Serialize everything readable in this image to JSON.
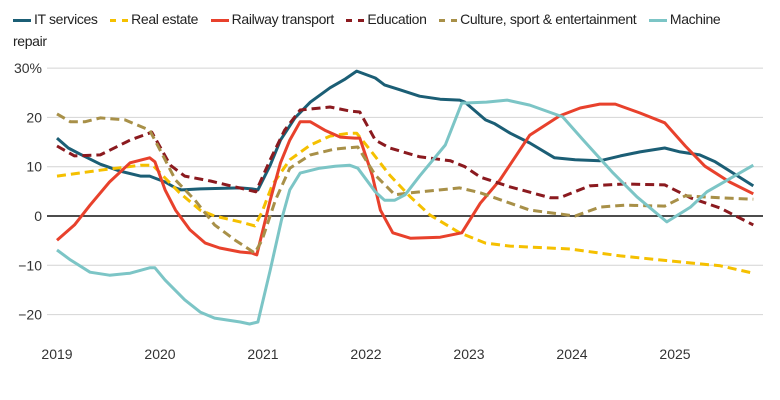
{
  "chart_data": {
    "type": "line",
    "title": "",
    "xlabel": "",
    "ylabel": "",
    "xlim": [
      2019,
      2025.9
    ],
    "ylim": [
      -25,
      30
    ],
    "grid": true,
    "legend_position": "top",
    "x_ticks": [
      "2019",
      "2020",
      "2021",
      "2022",
      "2023",
      "2024",
      "2025"
    ],
    "y_ticks": [
      {
        "value": 30,
        "label": "30%"
      },
      {
        "value": 20,
        "label": "20"
      },
      {
        "value": 10,
        "label": "10"
      },
      {
        "value": 0,
        "label": "0"
      },
      {
        "value": -10,
        "label": "−10"
      },
      {
        "value": -20,
        "label": "−20"
      }
    ],
    "series": [
      {
        "name": "IT services",
        "color": "#1b5e75",
        "dashed": false,
        "points": [
          [
            2019.0,
            15.8
          ],
          [
            2019.11,
            13.8
          ],
          [
            2019.22,
            12.6
          ],
          [
            2019.42,
            10.5
          ],
          [
            2019.61,
            9.1
          ],
          [
            2019.81,
            8.1
          ],
          [
            2019.9,
            8.1
          ],
          [
            2020.05,
            6.9
          ],
          [
            2020.15,
            5.7
          ],
          [
            2020.21,
            5.3
          ],
          [
            2020.39,
            5.5
          ],
          [
            2020.78,
            5.7
          ],
          [
            2020.89,
            5.5
          ],
          [
            2020.95,
            5.3
          ],
          [
            2021.07,
            10.3
          ],
          [
            2021.17,
            15.4
          ],
          [
            2021.31,
            19.9
          ],
          [
            2021.46,
            23.1
          ],
          [
            2021.65,
            26.0
          ],
          [
            2021.8,
            27.8
          ],
          [
            2021.91,
            29.4
          ],
          [
            2022.09,
            28.0
          ],
          [
            2022.18,
            26.6
          ],
          [
            2022.33,
            25.6
          ],
          [
            2022.52,
            24.3
          ],
          [
            2022.72,
            23.7
          ],
          [
            2022.91,
            23.5
          ],
          [
            2022.96,
            23.1
          ],
          [
            2023.16,
            19.5
          ],
          [
            2023.25,
            18.7
          ],
          [
            2023.4,
            16.8
          ],
          [
            2023.59,
            14.8
          ],
          [
            2023.83,
            11.8
          ],
          [
            2024.03,
            11.4
          ],
          [
            2024.27,
            11.2
          ],
          [
            2024.47,
            12.2
          ],
          [
            2024.66,
            13.0
          ],
          [
            2024.9,
            13.8
          ],
          [
            2025.05,
            13.0
          ],
          [
            2025.24,
            12.4
          ],
          [
            2025.39,
            11.0
          ],
          [
            2025.58,
            8.5
          ],
          [
            2025.76,
            6.1
          ]
        ]
      },
      {
        "name": "Real estate",
        "color": "#f5c000",
        "dashed": true,
        "points": [
          [
            2019.0,
            8.1
          ],
          [
            2019.42,
            9.3
          ],
          [
            2019.81,
            10.3
          ],
          [
            2019.93,
            10.3
          ],
          [
            2020.05,
            7.7
          ],
          [
            2020.19,
            4.7
          ],
          [
            2020.39,
            1.2
          ],
          [
            2020.53,
            0.0
          ],
          [
            2020.78,
            -1.2
          ],
          [
            2020.92,
            -2.0
          ],
          [
            2020.99,
            0.8
          ],
          [
            2021.09,
            6.3
          ],
          [
            2021.26,
            11.4
          ],
          [
            2021.46,
            14.4
          ],
          [
            2021.65,
            16.2
          ],
          [
            2021.84,
            16.8
          ],
          [
            2021.91,
            16.8
          ],
          [
            2022.04,
            13.4
          ],
          [
            2022.23,
            8.3
          ],
          [
            2022.43,
            3.9
          ],
          [
            2022.62,
            0.2
          ],
          [
            2022.91,
            -3.4
          ],
          [
            2023.16,
            -5.5
          ],
          [
            2023.4,
            -6.1
          ],
          [
            2023.98,
            -6.7
          ],
          [
            2024.47,
            -8.1
          ],
          [
            2024.95,
            -9.1
          ],
          [
            2025.44,
            -10.1
          ],
          [
            2025.76,
            -11.6
          ]
        ]
      },
      {
        "name": "Railway transport",
        "color": "#e8412c",
        "dashed": false,
        "points": [
          [
            2019.0,
            -4.9
          ],
          [
            2019.17,
            -1.8
          ],
          [
            2019.32,
            2.2
          ],
          [
            2019.51,
            6.9
          ],
          [
            2019.71,
            10.8
          ],
          [
            2019.9,
            11.8
          ],
          [
            2019.95,
            11.0
          ],
          [
            2020.05,
            5.3
          ],
          [
            2020.15,
            1.2
          ],
          [
            2020.29,
            -2.8
          ],
          [
            2020.44,
            -5.5
          ],
          [
            2020.58,
            -6.5
          ],
          [
            2020.78,
            -7.3
          ],
          [
            2020.89,
            -7.5
          ],
          [
            2020.94,
            -7.9
          ],
          [
            2021.07,
            3.2
          ],
          [
            2021.17,
            10.8
          ],
          [
            2021.26,
            15.4
          ],
          [
            2021.36,
            19.1
          ],
          [
            2021.46,
            19.1
          ],
          [
            2021.6,
            17.4
          ],
          [
            2021.75,
            16.0
          ],
          [
            2021.89,
            15.8
          ],
          [
            2021.94,
            15.8
          ],
          [
            2022.06,
            8.3
          ],
          [
            2022.14,
            1.2
          ],
          [
            2022.26,
            -3.4
          ],
          [
            2022.43,
            -4.5
          ],
          [
            2022.72,
            -4.3
          ],
          [
            2022.93,
            -3.4
          ],
          [
            2023.11,
            2.6
          ],
          [
            2023.3,
            7.3
          ],
          [
            2023.59,
            16.4
          ],
          [
            2023.88,
            20.3
          ],
          [
            2024.08,
            21.9
          ],
          [
            2024.27,
            22.7
          ],
          [
            2024.42,
            22.7
          ],
          [
            2024.66,
            20.9
          ],
          [
            2024.9,
            18.9
          ],
          [
            2025.1,
            14.2
          ],
          [
            2025.29,
            10.1
          ],
          [
            2025.53,
            6.9
          ],
          [
            2025.76,
            4.5
          ]
        ]
      },
      {
        "name": "Education",
        "color": "#8b1a1f",
        "dashed": true,
        "points": [
          [
            2019.0,
            14.2
          ],
          [
            2019.17,
            12.2
          ],
          [
            2019.42,
            12.4
          ],
          [
            2019.71,
            15.4
          ],
          [
            2019.92,
            17.0
          ],
          [
            2020.1,
            10.3
          ],
          [
            2020.24,
            8.1
          ],
          [
            2020.49,
            7.1
          ],
          [
            2020.73,
            5.9
          ],
          [
            2020.93,
            4.9
          ],
          [
            2021.07,
            11.4
          ],
          [
            2021.21,
            17.4
          ],
          [
            2021.36,
            21.5
          ],
          [
            2021.65,
            22.1
          ],
          [
            2021.84,
            21.3
          ],
          [
            2021.94,
            21.1
          ],
          [
            2022.09,
            15.4
          ],
          [
            2022.23,
            13.8
          ],
          [
            2022.52,
            12.0
          ],
          [
            2022.82,
            11.2
          ],
          [
            2022.96,
            10.0
          ],
          [
            2023.11,
            7.9
          ],
          [
            2023.4,
            5.9
          ],
          [
            2023.79,
            3.7
          ],
          [
            2023.88,
            3.7
          ],
          [
            2024.17,
            6.1
          ],
          [
            2024.51,
            6.5
          ],
          [
            2024.9,
            6.3
          ],
          [
            2025.15,
            3.7
          ],
          [
            2025.44,
            1.6
          ],
          [
            2025.76,
            -1.8
          ]
        ]
      },
      {
        "name": "Culture, sport & entertainment",
        "color": "#a89048",
        "dashed": true,
        "points": [
          [
            2019.0,
            20.7
          ],
          [
            2019.13,
            19.1
          ],
          [
            2019.27,
            19.1
          ],
          [
            2019.42,
            19.9
          ],
          [
            2019.66,
            19.5
          ],
          [
            2019.9,
            17.4
          ],
          [
            2020.0,
            13.4
          ],
          [
            2020.15,
            7.3
          ],
          [
            2020.34,
            3.2
          ],
          [
            2020.53,
            -1.8
          ],
          [
            2020.73,
            -4.9
          ],
          [
            2020.92,
            -7.5
          ],
          [
            2020.99,
            -4.9
          ],
          [
            2021.12,
            3.2
          ],
          [
            2021.26,
            9.7
          ],
          [
            2021.46,
            12.4
          ],
          [
            2021.7,
            13.6
          ],
          [
            2021.92,
            14.0
          ],
          [
            2022.09,
            8.3
          ],
          [
            2022.28,
            4.3
          ],
          [
            2022.43,
            4.7
          ],
          [
            2022.72,
            5.3
          ],
          [
            2022.91,
            5.7
          ],
          [
            2023.11,
            4.7
          ],
          [
            2023.4,
            2.6
          ],
          [
            2023.59,
            1.2
          ],
          [
            2024.03,
            0.0
          ],
          [
            2024.27,
            1.8
          ],
          [
            2024.51,
            2.2
          ],
          [
            2024.9,
            2.0
          ],
          [
            2025.1,
            4.1
          ],
          [
            2025.44,
            3.7
          ],
          [
            2025.76,
            3.4
          ]
        ]
      },
      {
        "name": "Machine repair",
        "color": "#7cc5c6",
        "dashed": false,
        "points": [
          [
            2019.0,
            -6.9
          ],
          [
            2019.13,
            -8.9
          ],
          [
            2019.32,
            -11.4
          ],
          [
            2019.51,
            -12.0
          ],
          [
            2019.71,
            -11.6
          ],
          [
            2019.9,
            -10.5
          ],
          [
            2019.95,
            -10.5
          ],
          [
            2020.05,
            -13.0
          ],
          [
            2020.24,
            -17.0
          ],
          [
            2020.39,
            -19.5
          ],
          [
            2020.53,
            -20.7
          ],
          [
            2020.78,
            -21.5
          ],
          [
            2020.87,
            -21.9
          ],
          [
            2020.95,
            -21.5
          ],
          [
            2021.07,
            -11.0
          ],
          [
            2021.18,
            -0.8
          ],
          [
            2021.26,
            5.3
          ],
          [
            2021.36,
            8.7
          ],
          [
            2021.55,
            9.7
          ],
          [
            2021.7,
            10.1
          ],
          [
            2021.84,
            10.3
          ],
          [
            2021.92,
            9.7
          ],
          [
            2022.09,
            4.9
          ],
          [
            2022.18,
            3.2
          ],
          [
            2022.28,
            3.2
          ],
          [
            2022.38,
            4.3
          ],
          [
            2022.52,
            8.1
          ],
          [
            2022.77,
            14.4
          ],
          [
            2022.93,
            22.9
          ],
          [
            2023.17,
            23.1
          ],
          [
            2023.37,
            23.5
          ],
          [
            2023.59,
            22.5
          ],
          [
            2023.91,
            20.1
          ],
          [
            2024.11,
            15.4
          ],
          [
            2024.4,
            8.7
          ],
          [
            2024.63,
            3.9
          ],
          [
            2024.92,
            -1.2
          ],
          [
            2025.15,
            1.8
          ],
          [
            2025.31,
            4.9
          ],
          [
            2025.76,
            10.3
          ]
        ]
      }
    ]
  }
}
